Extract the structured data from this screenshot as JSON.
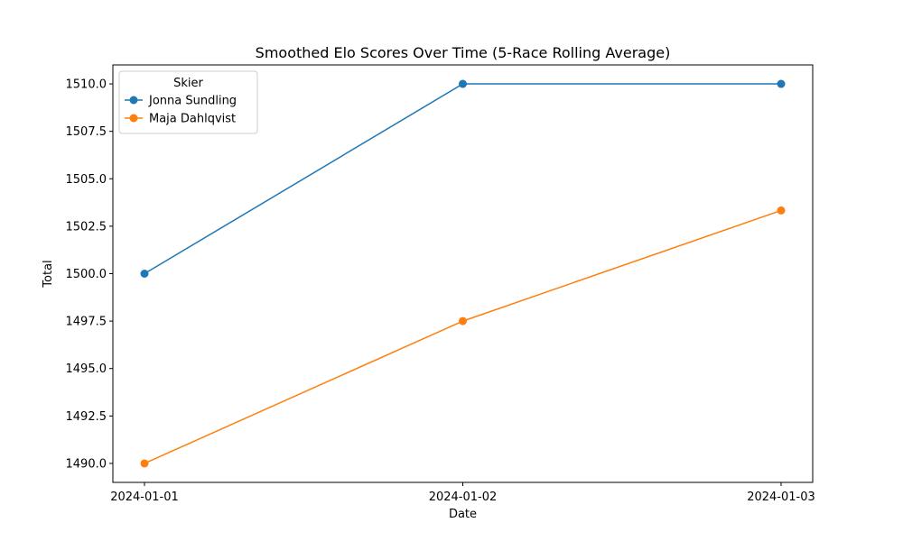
{
  "chart_data": {
    "type": "line",
    "title": "Smoothed Elo Scores Over Time (5-Race Rolling Average)",
    "xlabel": "Date",
    "ylabel": "Total",
    "x": [
      "2024-01-01",
      "2024-01-02",
      "2024-01-03"
    ],
    "ylim": [
      1489.0,
      1511.0
    ],
    "yticks": [
      "1490.0",
      "1492.5",
      "1495.0",
      "1497.5",
      "1500.0",
      "1502.5",
      "1505.0",
      "1507.5",
      "1510.0"
    ],
    "grid": false,
    "legend": {
      "title": "Skier",
      "placement": "top-left"
    },
    "series": [
      {
        "name": "Jonna Sundling",
        "color": "#1f77b4",
        "marker": "circle",
        "values": [
          1500.0,
          1510.0,
          1510.0
        ]
      },
      {
        "name": "Maja Dahlqvist",
        "color": "#ff7f0e",
        "marker": "circle",
        "values": [
          1490.0,
          1497.5,
          1503.33
        ]
      }
    ]
  }
}
